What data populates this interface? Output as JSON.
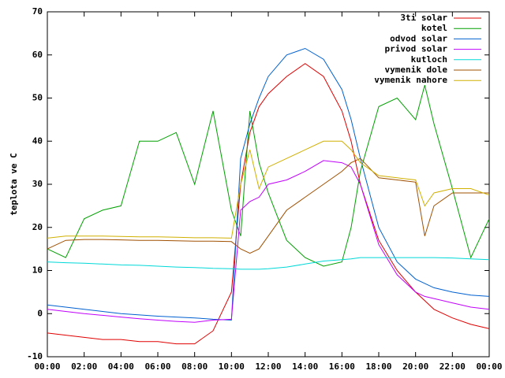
{
  "chart_data": {
    "type": "line",
    "ylabel": "teplota ve C",
    "x": [
      0,
      1,
      2,
      3,
      4,
      5,
      6,
      7,
      8,
      9,
      10,
      10.5,
      11,
      11.5,
      12,
      13,
      14,
      15,
      16,
      16.5,
      17,
      18,
      19,
      20,
      20.5,
      21,
      22,
      23,
      24
    ],
    "xlim": [
      0,
      24
    ],
    "xticks": [
      {
        "value": 0,
        "label": "00:00"
      },
      {
        "value": 2,
        "label": "02:00"
      },
      {
        "value": 4,
        "label": "04:00"
      },
      {
        "value": 6,
        "label": "06:00"
      },
      {
        "value": 8,
        "label": "08:00"
      },
      {
        "value": 10,
        "label": "10:00"
      },
      {
        "value": 12,
        "label": "12:00"
      },
      {
        "value": 14,
        "label": "14:00"
      },
      {
        "value": 16,
        "label": "16:00"
      },
      {
        "value": 18,
        "label": "18:00"
      },
      {
        "value": 20,
        "label": "20:00"
      },
      {
        "value": 22,
        "label": "22:00"
      },
      {
        "value": 24,
        "label": "00:00"
      }
    ],
    "ylim": [
      -10,
      70
    ],
    "yticks": [
      -10,
      0,
      10,
      20,
      30,
      40,
      50,
      60,
      70
    ],
    "legend": "upper right",
    "series": [
      {
        "name": "3ti solar",
        "color": "#e00000",
        "values": [
          -4.5,
          -5,
          -5.5,
          -6,
          -6,
          -6.5,
          -6.5,
          -7,
          -7,
          -4,
          5,
          30,
          42,
          48,
          51,
          55,
          58,
          55,
          47,
          40,
          30,
          17,
          10,
          5,
          3,
          1,
          -1,
          -2.5,
          -3.5
        ]
      },
      {
        "name": "kotel",
        "color": "#00a000",
        "values": [
          15,
          13,
          22,
          24,
          25,
          40,
          40,
          42,
          30,
          47,
          24,
          18,
          47,
          35,
          28,
          17,
          13,
          11,
          12,
          20,
          33,
          48,
          50,
          45,
          53,
          44,
          29,
          13,
          22
        ]
      },
      {
        "name": "odvod solar",
        "color": "#0060d0",
        "values": [
          2,
          1.5,
          1,
          0.5,
          0,
          -0.3,
          -0.6,
          -0.8,
          -1,
          -1.3,
          -1.5,
          36,
          44,
          50,
          55,
          60,
          61.5,
          59,
          52,
          45,
          36,
          20,
          12,
          8,
          7,
          6,
          5,
          4.3,
          4
        ]
      },
      {
        "name": "privod solar",
        "color": "#c000ff",
        "values": [
          1,
          0.5,
          0,
          -0.4,
          -0.8,
          -1.2,
          -1.5,
          -1.8,
          -2,
          -1.5,
          -1.3,
          24,
          26,
          27,
          30,
          31,
          33,
          35.5,
          35,
          34,
          30,
          16,
          9,
          5,
          4,
          3.5,
          2.5,
          1.5,
          1
        ]
      },
      {
        "name": "kutloch",
        "color": "#00d8d8",
        "values": [
          12,
          11.8,
          11.7,
          11.5,
          11.3,
          11.2,
          11,
          10.8,
          10.7,
          10.5,
          10.4,
          10.3,
          10.3,
          10.3,
          10.4,
          10.8,
          11.5,
          12.2,
          12.5,
          12.7,
          13,
          13,
          13,
          13,
          13,
          13,
          12.9,
          12.7,
          12.5
        ]
      },
      {
        "name": "vymenik dole",
        "color": "#a05000",
        "values": [
          15,
          17,
          17.2,
          17.2,
          17.1,
          17,
          17,
          16.9,
          16.8,
          16.8,
          16.7,
          15,
          14,
          15,
          18,
          24,
          27,
          30,
          33,
          35,
          36,
          31.5,
          31,
          30.5,
          18,
          25,
          28,
          28,
          28
        ]
      },
      {
        "name": "vymenik nahore",
        "color": "#d0b000",
        "values": [
          17.5,
          18,
          18,
          18,
          17.9,
          17.8,
          17.8,
          17.7,
          17.6,
          17.6,
          17.5,
          30,
          38,
          29,
          34,
          36,
          38,
          40,
          40,
          38,
          35,
          32,
          31.5,
          31,
          25,
          28,
          29,
          29,
          27.5
        ]
      }
    ]
  }
}
